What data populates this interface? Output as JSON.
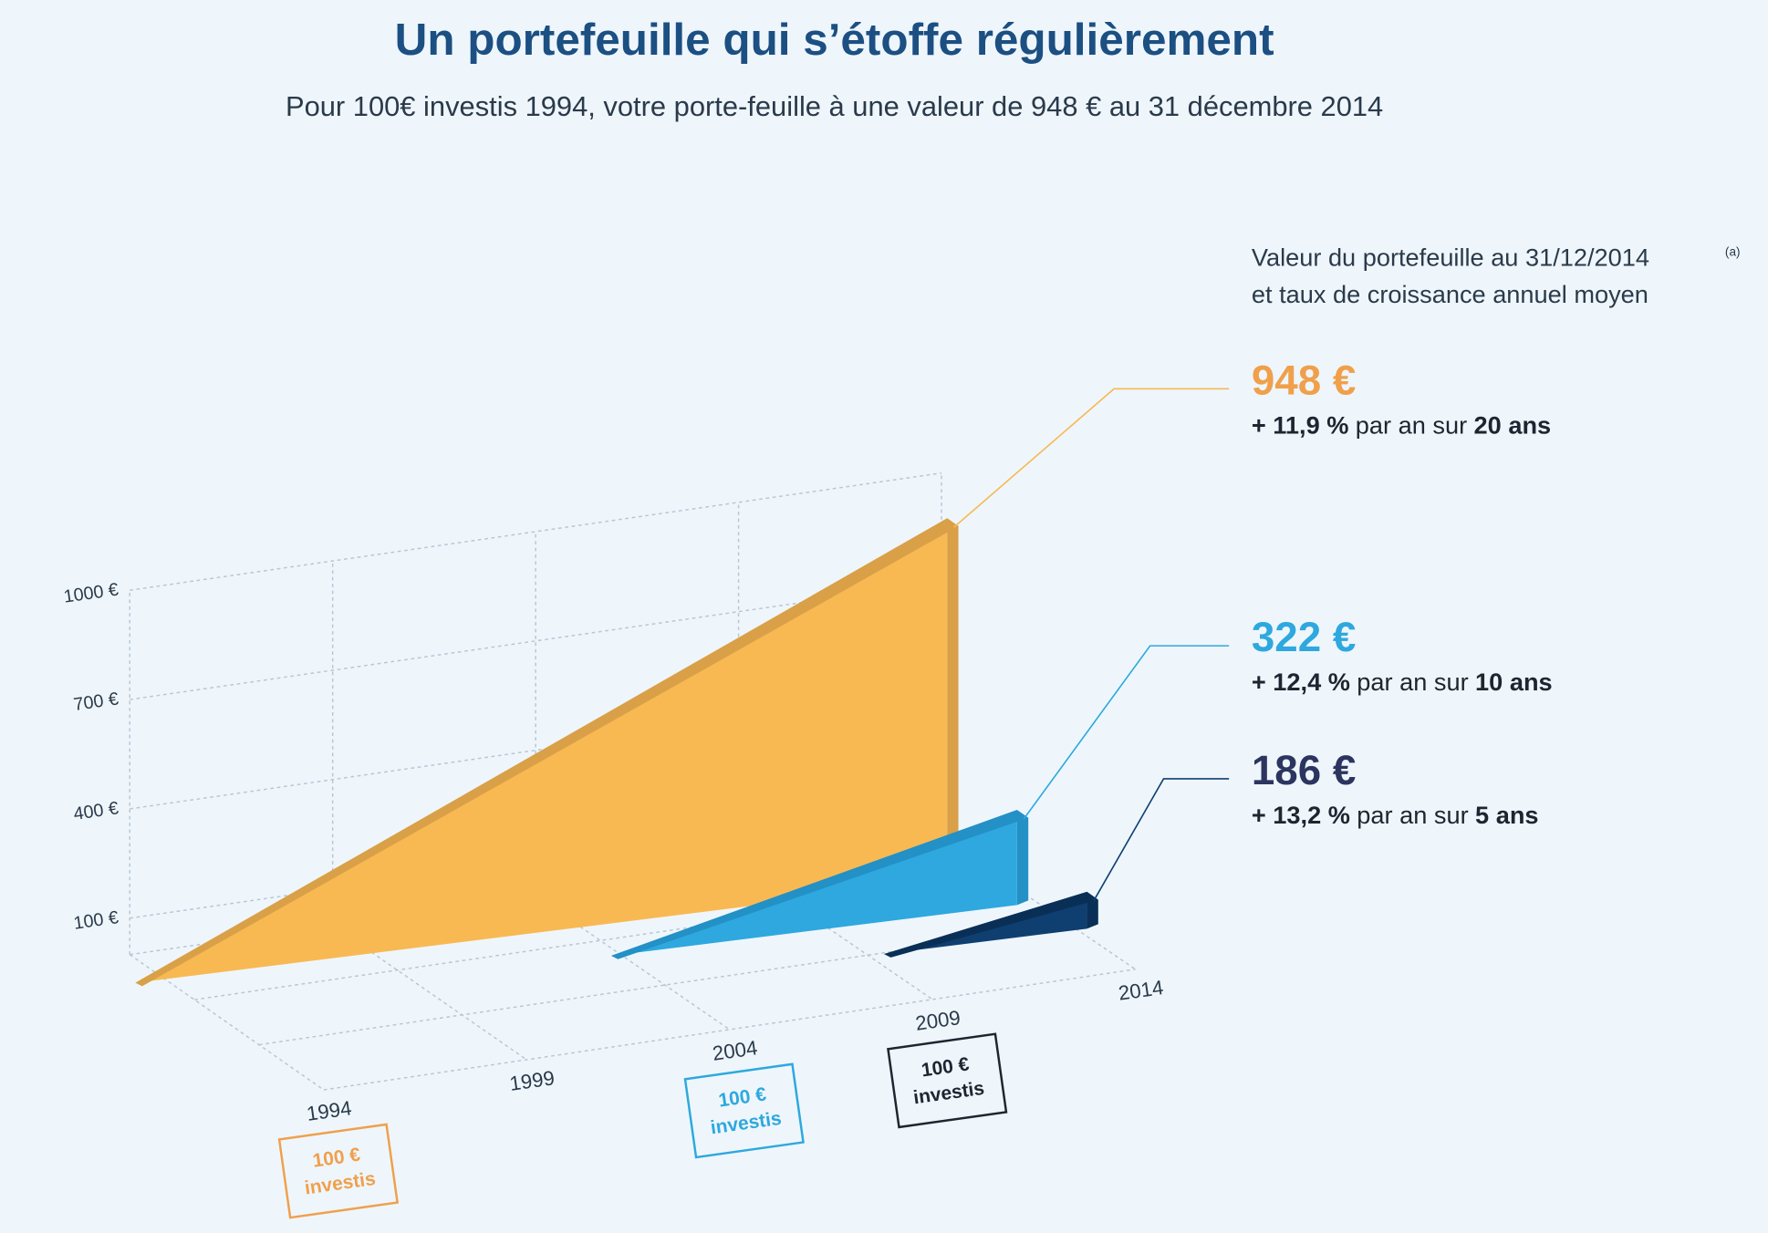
{
  "chart_data": {
    "type": "wedge3d",
    "title": "Un portefeuille qui s’étoffe régulièrement",
    "subtitle": "Pour 100€ investis 1994, votre porte-feuille à une valeur de 948 € au 31 décembre 2014",
    "legend_title": [
      "Valeur du portefeuille au 31/12/2014",
      "et taux de croissance annuel moyen"
    ],
    "legend_note": "(a)",
    "xlim": [
      1994,
      2014
    ],
    "xticks": [
      1994,
      1999,
      2004,
      2009,
      2014
    ],
    "ylim": [
      0,
      1000
    ],
    "yticks": [
      {
        "value": 100,
        "label": "100 €"
      },
      {
        "value": 400,
        "label": "400 €"
      },
      {
        "value": 700,
        "label": "700 €"
      },
      {
        "value": 1000,
        "label": "1000 €"
      }
    ],
    "grid": true,
    "series": [
      {
        "color": "#f8b953",
        "edge_color": "#d9a048",
        "label_color": "#f0a04b",
        "box_color": "#f0a04b",
        "x": [
          1994,
          2014
        ],
        "values": [
          100,
          948
        ],
        "value_labels": [
          "100 €",
          "948 €"
        ],
        "start_note": "investis",
        "rate": "+ 11,9 %",
        "rate_text": "par an sur",
        "period": "20 ans"
      },
      {
        "color": "#2ea8de",
        "edge_color": "#2390c6",
        "label_color": "#2ea8de",
        "box_color": "#2ea8de",
        "x": [
          2004,
          2014
        ],
        "values": [
          100,
          322
        ],
        "value_labels": [
          "100 €",
          "322 €"
        ],
        "start_note": "investis",
        "rate": "+ 12,4 %",
        "rate_text": "par an sur",
        "period": "10 ans"
      },
      {
        "color": "#0f3f70",
        "edge_color": "#0a2f57",
        "label_color": "#2c3560",
        "box_color": "#1d2530",
        "x": [
          2009,
          2014
        ],
        "values": [
          100,
          186
        ],
        "value_labels": [
          "100 €",
          "186 €"
        ],
        "start_note": "investis",
        "rate": "+ 13,2 %",
        "rate_text": "par an sur",
        "period": "5 ans"
      }
    ]
  }
}
